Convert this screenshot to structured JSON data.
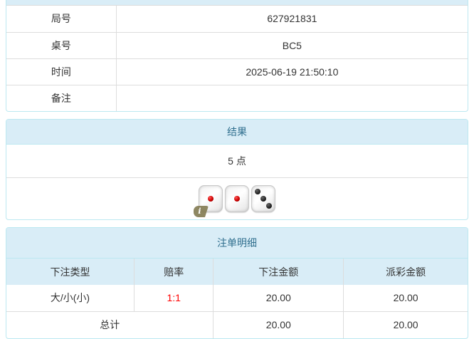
{
  "colors": {
    "panel_border": "#bce8f1",
    "heading_bg": "#d9edf7",
    "heading_text": "#31708f",
    "cell_border": "#dddddd",
    "body_text": "#333333",
    "odds_red": "#ff0000",
    "dice_dot_red": "#cc0000",
    "dice_dot_black": "#222222",
    "info_badge_bg": "#857d55"
  },
  "info_table": {
    "rows": [
      {
        "label": "局号",
        "value": "627921831"
      },
      {
        "label": "桌号",
        "value": "BC5"
      },
      {
        "label": "时间",
        "value": "2025-06-19 21:50:10"
      },
      {
        "label": "备注",
        "value": ""
      }
    ]
  },
  "result_panel": {
    "title": "结果",
    "points": "5 点",
    "dice": [
      1,
      1,
      3
    ],
    "info_badge": "i"
  },
  "bet_panel": {
    "title": "注单明细",
    "columns": [
      "下注类型",
      "赔率",
      "下注金额",
      "派彩金额"
    ],
    "rows": [
      {
        "type": "大/小(小)",
        "odds": "1:1",
        "bet": "20.00",
        "payout": "20.00"
      }
    ],
    "total": {
      "label": "总计",
      "bet": "20.00",
      "payout": "20.00"
    }
  }
}
